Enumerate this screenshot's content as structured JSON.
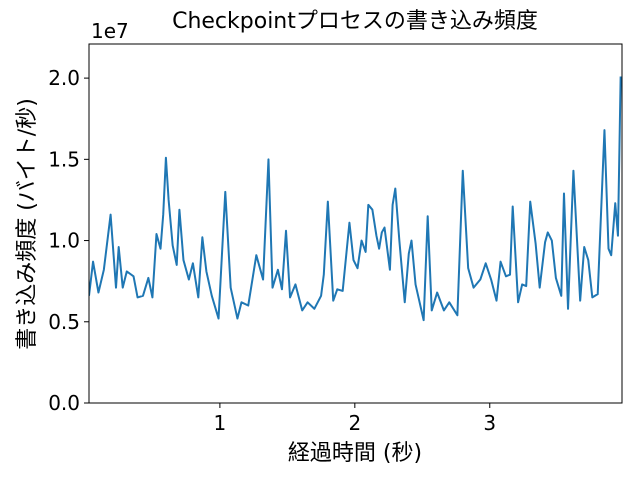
{
  "chart_data": {
    "type": "line",
    "title": "Checkpointプロセスの書き込み頻度",
    "x_label": "経過時間 (秒)",
    "y_label": "書き込み頻度 (バイト/秒)",
    "y_offset_label": "1e7",
    "xlim": [
      0.03,
      3.98
    ],
    "ylim": [
      0,
      2.21
    ],
    "xticks": [
      1,
      2,
      3
    ],
    "yticks": [
      {
        "value": 0,
        "label": "0.0"
      },
      {
        "value": 0.5,
        "label": "0.5"
      },
      {
        "value": 1,
        "label": "1.0"
      },
      1.5,
      {
        "value": 2,
        "label": "2.0"
      }
    ],
    "grid": false,
    "x": [
      0.03,
      0.06,
      0.1,
      0.14,
      0.19,
      0.23,
      0.25,
      0.28,
      0.31,
      0.36,
      0.39,
      0.43,
      0.47,
      0.5,
      0.53,
      0.56,
      0.58,
      0.6,
      0.62,
      0.65,
      0.68,
      0.7,
      0.73,
      0.77,
      0.8,
      0.84,
      0.87,
      0.9,
      0.94,
      0.99,
      1.04,
      1.08,
      1.13,
      1.16,
      1.21,
      1.27,
      1.32,
      1.36,
      1.39,
      1.43,
      1.46,
      1.49,
      1.52,
      1.56,
      1.61,
      1.65,
      1.7,
      1.75,
      1.77,
      1.8,
      1.84,
      1.87,
      1.91,
      1.96,
      1.99,
      2.02,
      2.05,
      2.08,
      2.1,
      2.13,
      2.16,
      2.18,
      2.2,
      2.22,
      2.26,
      2.28,
      2.3,
      2.33,
      2.37,
      2.4,
      2.42,
      2.45,
      2.51,
      2.54,
      2.57,
      2.61,
      2.66,
      2.7,
      2.76,
      2.8,
      2.84,
      2.88,
      2.93,
      2.97,
      3.01,
      3.05,
      3.08,
      3.12,
      3.15,
      3.17,
      3.21,
      3.24,
      3.27,
      3.3,
      3.34,
      3.37,
      3.41,
      3.43,
      3.46,
      3.49,
      3.53,
      3.55,
      3.58,
      3.61,
      3.62,
      3.67,
      3.7,
      3.73,
      3.76,
      3.8,
      3.85,
      3.88,
      3.9,
      3.93,
      3.95,
      3.97
    ],
    "series": [
      {
        "color": "#1f77b4",
        "values": [
          0.66,
          0.87,
          0.68,
          0.82,
          1.16,
          0.71,
          0.96,
          0.71,
          0.81,
          0.78,
          0.65,
          0.66,
          0.77,
          0.65,
          1.04,
          0.95,
          1.16,
          1.51,
          1.25,
          0.97,
          0.85,
          1.19,
          0.88,
          0.76,
          0.86,
          0.65,
          1.02,
          0.81,
          0.66,
          0.52,
          1.3,
          0.71,
          0.52,
          0.62,
          0.6,
          0.91,
          0.76,
          1.5,
          0.71,
          0.82,
          0.7,
          1.06,
          0.65,
          0.73,
          0.57,
          0.62,
          0.58,
          0.66,
          0.79,
          1.24,
          0.63,
          0.7,
          0.69,
          1.11,
          0.88,
          0.83,
          1.0,
          0.93,
          1.22,
          1.19,
          1.03,
          0.95,
          1.05,
          1.08,
          0.82,
          1.22,
          1.32,
          1.0,
          0.62,
          0.92,
          1.0,
          0.73,
          0.51,
          1.15,
          0.57,
          0.68,
          0.57,
          0.62,
          0.54,
          1.43,
          0.83,
          0.71,
          0.76,
          0.86,
          0.76,
          0.63,
          0.87,
          0.78,
          0.79,
          1.21,
          0.62,
          0.73,
          0.72,
          1.24,
          0.98,
          0.71,
          0.99,
          1.05,
          1.0,
          0.77,
          0.66,
          1.29,
          0.58,
          1.22,
          1.43,
          0.63,
          0.96,
          0.88,
          0.65,
          0.67,
          1.68,
          0.95,
          0.91,
          1.23,
          1.03,
          2.01
        ]
      }
    ]
  }
}
